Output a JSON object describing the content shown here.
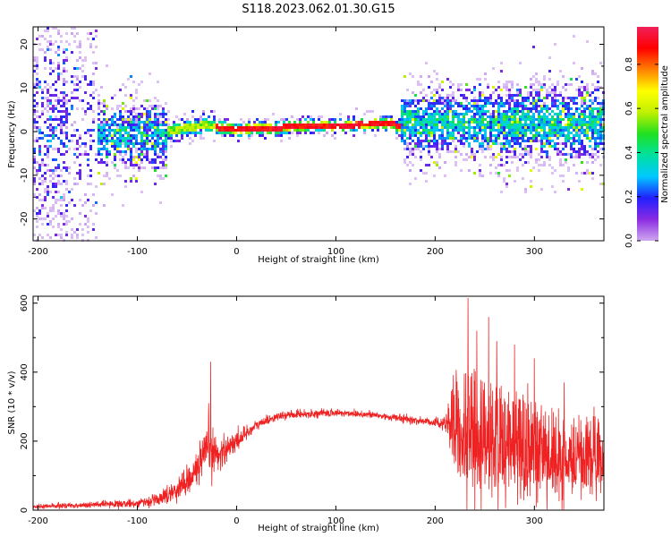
{
  "figure_title": "S118.2023.062.01.30.G15",
  "colors": {
    "snr_line": "#ee2222",
    "axis": "#000000",
    "colormap": [
      "#d0a8f0",
      "#8a2be2",
      "#2020ff",
      "#00c8ff",
      "#00e0a0",
      "#20e020",
      "#c0f000",
      "#ffff00",
      "#ff8000",
      "#ff0000",
      "#f0205a"
    ]
  },
  "chart_data": [
    {
      "type": "heatmap",
      "title": "",
      "xlabel": "Height of straight line (km)",
      "ylabel": "Frequency (Hz)",
      "xlim": [
        -205,
        370
      ],
      "ylim": [
        -25,
        24
      ],
      "x_ticks": [
        -200,
        -100,
        0,
        100,
        200,
        300
      ],
      "y_ticks": [
        -20,
        -10,
        0,
        10,
        20
      ],
      "colorbar": {
        "label": "Normalized spectral amplitude",
        "range": [
          0,
          0.97
        ],
        "ticks": [
          "0.0",
          "0.2",
          "0.4",
          "0.6",
          "0.8"
        ],
        "tick_values": [
          0,
          0.2,
          0.4,
          0.6,
          0.8
        ]
      },
      "segments": [
        {
          "x": [
            -205,
            -140
          ],
          "center_freq": 0,
          "freq_spread": 24,
          "amplitude": 0.15,
          "density": 0.55
        },
        {
          "x": [
            -140,
            -70
          ],
          "center_freq": -1,
          "freq_spread": 8,
          "amplitude": 0.3,
          "density": 0.85
        },
        {
          "x": [
            -70,
            -20
          ],
          "center_freq": 0,
          "freq_spread": 2.5,
          "amplitude": 0.5,
          "density": 1
        },
        {
          "x": [
            -20,
            165
          ],
          "center_freq": 1,
          "freq_spread": 1.8,
          "amplitude": 0.85,
          "density": 1
        },
        {
          "x": [
            165,
            260
          ],
          "center_freq": 2,
          "freq_spread": 8,
          "amplitude": 0.35,
          "density": 0.85
        },
        {
          "x": [
            260,
            370
          ],
          "center_freq": 2,
          "freq_spread": 9,
          "amplitude": 0.35,
          "density": 0.85
        }
      ],
      "ridge": {
        "x": [
          -70,
          -60,
          -50,
          -40,
          -30,
          -20,
          0,
          20,
          40,
          60,
          80,
          100,
          120,
          140,
          160
        ],
        "freq": [
          0,
          0.5,
          0.8,
          1.2,
          1.5,
          1,
          0.5,
          0.8,
          0.8,
          1.2,
          1.5,
          1.2,
          1.5,
          1.8,
          2
        ]
      }
    },
    {
      "type": "line",
      "title": "",
      "xlabel": "Height of straight line (km)",
      "ylabel": "SNR (10 * v/v)",
      "xlim": [
        -205,
        370
      ],
      "ylim": [
        0,
        620
      ],
      "x_ticks": [
        -200,
        -100,
        0,
        100,
        200,
        300
      ],
      "y_ticks": [
        0,
        200,
        400,
        600
      ],
      "series": [
        {
          "x": [
            -205,
            -150,
            -100,
            -80,
            -60,
            -45,
            -35,
            -28,
            -20,
            -10,
            0,
            10,
            20,
            30,
            40,
            50,
            60,
            80,
            100,
            120,
            140,
            160,
            180,
            200,
            210,
            215,
            220,
            230,
            240,
            260,
            280,
            300,
            320,
            340,
            370
          ],
          "baseline": [
            10,
            15,
            20,
            30,
            60,
            100,
            140,
            180,
            160,
            180,
            200,
            225,
            245,
            260,
            270,
            275,
            278,
            280,
            282,
            280,
            275,
            268,
            260,
            255,
            250,
            240,
            200,
            190,
            180,
            160,
            150,
            140,
            135,
            130,
            130
          ],
          "noise": [
            6,
            8,
            10,
            15,
            30,
            40,
            55,
            70,
            50,
            35,
            25,
            20,
            15,
            12,
            10,
            10,
            10,
            10,
            10,
            10,
            10,
            10,
            10,
            12,
            20,
            60,
            150,
            160,
            150,
            140,
            130,
            120,
            110,
            100,
            100
          ]
        }
      ],
      "spikes": [
        {
          "x": -26,
          "y": 430
        },
        {
          "x": -28,
          "y": 310
        },
        {
          "x": 233,
          "y": 615
        },
        {
          "x": 242,
          "y": 520
        },
        {
          "x": 254,
          "y": 560
        },
        {
          "x": 262,
          "y": 490
        },
        {
          "x": 280,
          "y": 480
        },
        {
          "x": 300,
          "y": 440
        },
        {
          "x": 330,
          "y": 370
        },
        {
          "x": 360,
          "y": 300
        }
      ]
    }
  ]
}
